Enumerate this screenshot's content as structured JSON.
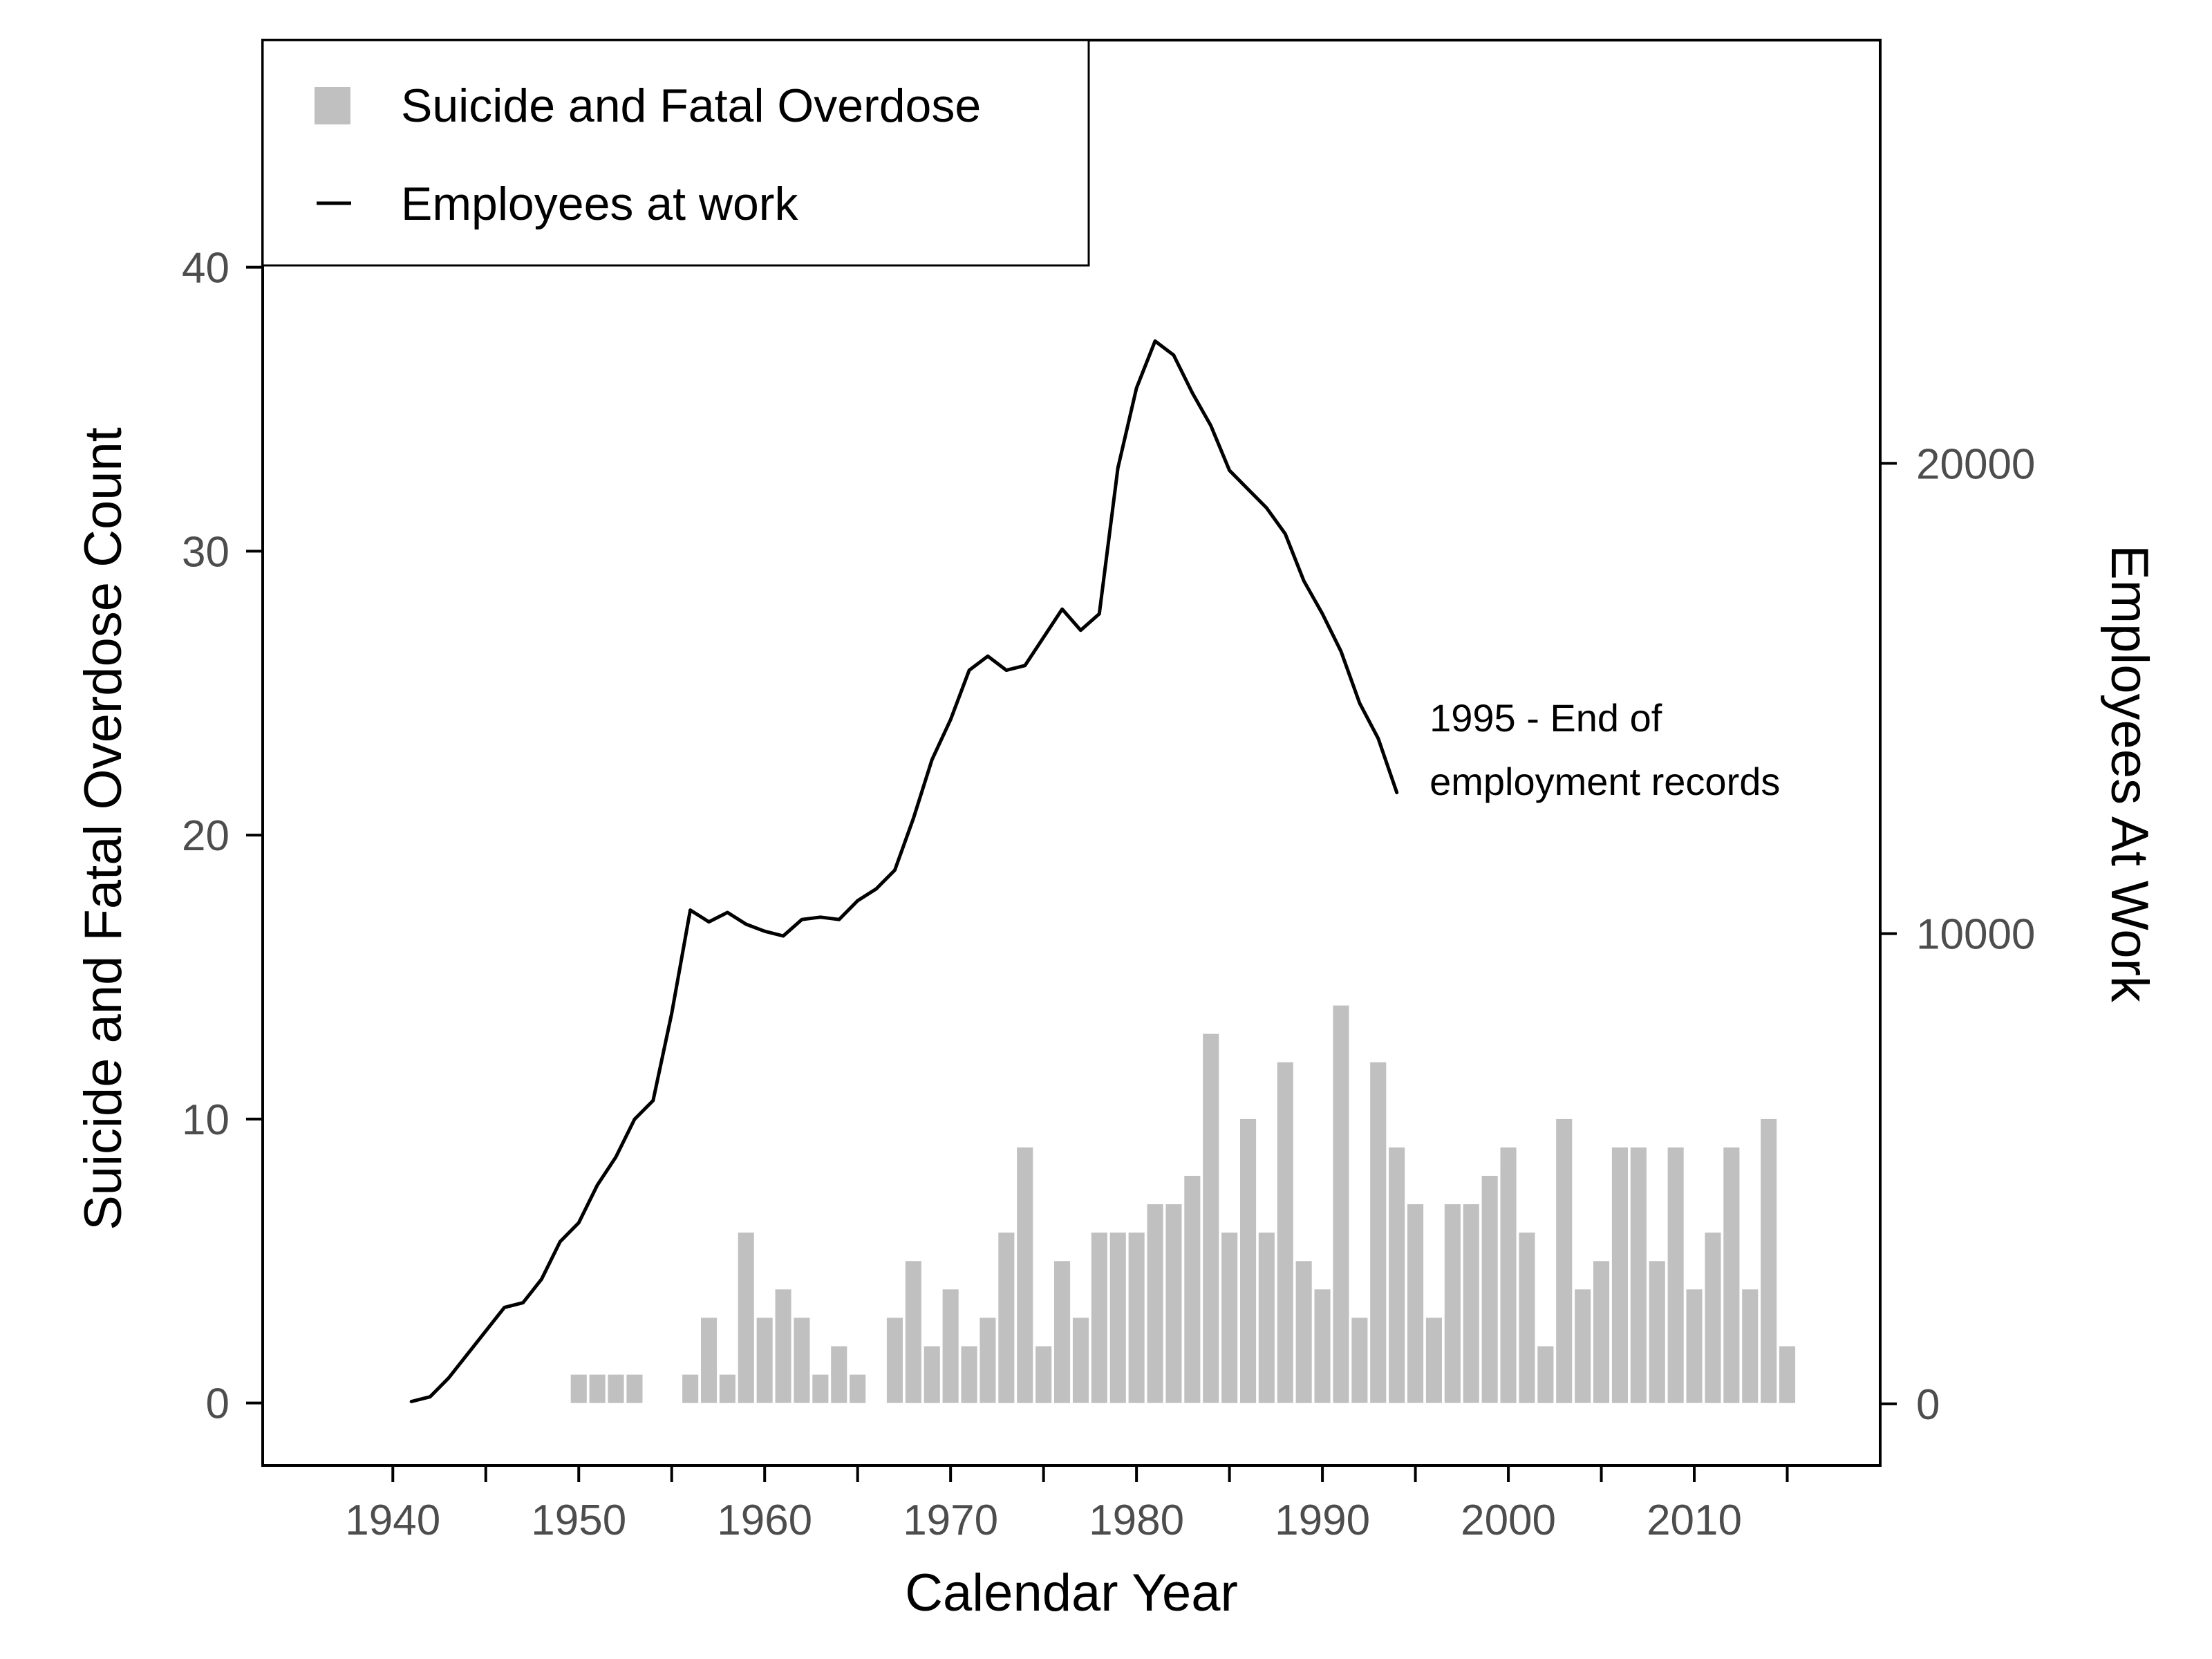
{
  "chart_data": {
    "type": "bar+line",
    "xlabel": "Calendar Year",
    "ylabel_left": "Suicide and Fatal Overdose Count",
    "ylabel_right": "Employees At Work",
    "xlim": [
      1933,
      2020
    ],
    "ylim_left": [
      -2.2,
      48
    ],
    "ylim_right": [
      -1310,
      29000
    ],
    "x_ticks": [
      1940,
      1950,
      1960,
      1970,
      1980,
      1990,
      2000,
      2010
    ],
    "x_tick_labels": [
      "1940",
      "1950",
      "1960",
      "1970",
      "1980",
      "1990",
      "2000",
      "2010"
    ],
    "x_minor_ticks": [
      1945,
      1955,
      1965,
      1975,
      1985,
      1995,
      2005,
      2015
    ],
    "y_left_ticks": [
      0,
      10,
      20,
      30,
      40
    ],
    "y_left_tick_labels": [
      "0",
      "10",
      "20",
      "30",
      "40"
    ],
    "y_right_ticks": [
      0,
      10000,
      20000
    ],
    "y_right_tick_labels": [
      "0",
      "10000",
      "20000"
    ],
    "grid": false,
    "legend_position": "top-left",
    "series": [
      {
        "name": "Suicide and Fatal Overdose",
        "type": "bar",
        "axis": "left",
        "color": "#c0c0c0",
        "x": [
          1950,
          1951,
          1952,
          1953,
          1956,
          1957,
          1958,
          1959,
          1960,
          1961,
          1962,
          1963,
          1964,
          1965,
          1967,
          1968,
          1969,
          1970,
          1971,
          1972,
          1973,
          1974,
          1975,
          1976,
          1977,
          1978,
          1979,
          1980,
          1981,
          1982,
          1983,
          1984,
          1985,
          1986,
          1987,
          1988,
          1989,
          1990,
          1991,
          1992,
          1993,
          1994,
          1995,
          1996,
          1997,
          1998,
          1999,
          2000,
          2001,
          2002,
          2003,
          2004,
          2005,
          2006,
          2007,
          2008,
          2009,
          2010,
          2011,
          2012,
          2013,
          2014,
          2015
        ],
        "values": [
          1,
          1,
          1,
          1,
          1,
          3,
          1,
          6,
          3,
          4,
          3,
          1,
          2,
          1,
          3,
          5,
          2,
          4,
          2,
          3,
          6,
          9,
          2,
          5,
          3,
          6,
          6,
          6,
          7,
          7,
          8,
          13,
          6,
          10,
          6,
          12,
          5,
          4,
          14,
          3,
          12,
          9,
          7,
          3,
          7,
          7,
          8,
          9,
          6,
          2,
          10,
          4,
          5,
          9,
          9,
          5,
          9,
          4,
          6,
          9,
          4,
          10,
          2
        ]
      },
      {
        "name": "Employees at work",
        "type": "line",
        "axis": "right",
        "color": "#000000",
        "x": [
          1941,
          1942,
          1943,
          1944,
          1945,
          1946,
          1947,
          1948,
          1949,
          1950,
          1951,
          1952,
          1953,
          1954,
          1955,
          1956,
          1957,
          1958,
          1959,
          1960,
          1961,
          1962,
          1963,
          1964,
          1965,
          1966,
          1967,
          1968,
          1969,
          1970,
          1971,
          1972,
          1973,
          1974,
          1975,
          1976,
          1977,
          1978,
          1979,
          1980,
          1981,
          1982,
          1983,
          1984,
          1985,
          1986,
          1987,
          1988,
          1989,
          1990,
          1991,
          1992,
          1993,
          1994
        ],
        "values": [
          50,
          150,
          550,
          1050,
          1550,
          2050,
          2150,
          2650,
          3450,
          3850,
          4650,
          5250,
          6050,
          6450,
          8300,
          10500,
          10250,
          10450,
          10200,
          10050,
          9950,
          10300,
          10350,
          10300,
          10700,
          10950,
          11350,
          12450,
          13700,
          14550,
          15600,
          15900,
          15600,
          15700,
          16300,
          16900,
          16450,
          16800,
          19900,
          21600,
          22600,
          22300,
          21500,
          20800,
          19850,
          19450,
          19050,
          18500,
          17500,
          16800,
          16000,
          14900,
          14150,
          13000
        ]
      }
    ],
    "legend": [
      {
        "label": "Suicide and Fatal Overdose",
        "symbol": "square",
        "color": "#c0c0c0"
      },
      {
        "label": "Employees at work",
        "symbol": "line",
        "color": "#000000"
      }
    ],
    "annotations": [
      {
        "lines": [
          "1995 - End of",
          "employment records"
        ],
        "x": 1994.2,
        "y_right": 14300
      }
    ]
  }
}
